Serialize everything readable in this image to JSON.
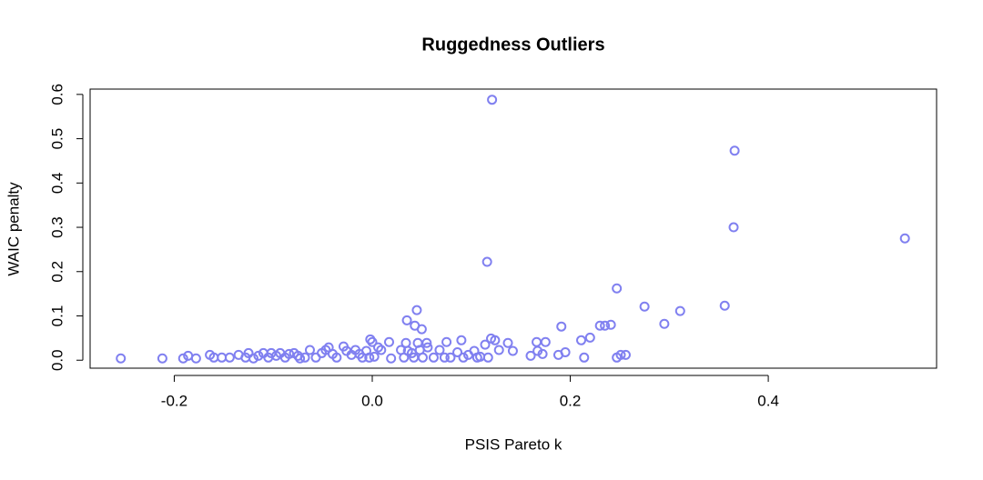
{
  "chart_data": {
    "type": "scatter",
    "title": "Ruggedness Outliers",
    "x_label": "PSIS Pareto k",
    "y_label": "WAIC penalty",
    "color": "#8080f0",
    "xlim": [
      -0.285,
      0.57
    ],
    "ylim": [
      -0.018,
      0.612
    ],
    "xticks": [
      {
        "value": -0.2,
        "label": "-0.2"
      },
      {
        "value": 0,
        "label": "0.0"
      },
      {
        "value": 0.2,
        "label": "0.2"
      },
      {
        "value": 0.4,
        "label": "0.4"
      }
    ],
    "yticks": [
      {
        "value": 0,
        "label": "0.0"
      },
      0.1,
      0.2,
      0.3,
      0.4,
      0.5,
      0.6
    ],
    "x": [
      0.121,
      0.366,
      0.365,
      0.538,
      0.116,
      0.247,
      0.275,
      0.356,
      0.311,
      0.295,
      0.045,
      0.035,
      0.043,
      0.05,
      0.191,
      0.23,
      0.235,
      0.241,
      0.22,
      0.211,
      0.12,
      0.124,
      0.175,
      0.166,
      0.137,
      0.09,
      0.075,
      0.114,
      -0.002,
      0,
      0.017,
      0.055,
      0.046,
      0.034,
      -0.254,
      -0.212,
      -0.191,
      -0.186,
      -0.178,
      -0.164,
      -0.16,
      -0.152,
      -0.144,
      -0.135,
      -0.128,
      -0.125,
      -0.12,
      -0.115,
      -0.11,
      -0.105,
      -0.102,
      -0.097,
      -0.093,
      -0.088,
      -0.084,
      -0.079,
      -0.075,
      -0.073,
      -0.068,
      -0.063,
      -0.057,
      -0.051,
      -0.047,
      -0.044,
      -0.04,
      -0.036,
      -0.029,
      -0.026,
      -0.021,
      -0.017,
      -0.013,
      -0.01,
      -0.006,
      -0.003,
      0.002,
      0.006,
      0.009,
      0.019,
      0.029,
      0.032,
      0.036,
      0.04,
      0.042,
      0.048,
      0.051,
      0.056,
      0.062,
      0.068,
      0.073,
      0.079,
      0.086,
      0.092,
      0.097,
      0.103,
      0.106,
      0.109,
      0.117,
      0.128,
      0.142,
      0.16,
      0.167,
      0.172,
      0.188,
      0.195,
      0.214,
      0.247,
      0.251,
      0.256
    ],
    "values": [
      0.588,
      0.473,
      0.3,
      0.275,
      0.222,
      0.162,
      0.121,
      0.123,
      0.111,
      0.082,
      0.113,
      0.09,
      0.078,
      0.07,
      0.076,
      0.078,
      0.078,
      0.08,
      0.051,
      0.045,
      0.049,
      0.045,
      0.041,
      0.041,
      0.039,
      0.045,
      0.041,
      0.035,
      0.047,
      0.041,
      0.041,
      0.039,
      0.039,
      0.039,
      0.004,
      0.004,
      0.004,
      0.01,
      0.004,
      0.012,
      0.006,
      0.006,
      0.006,
      0.012,
      0.006,
      0.016,
      0.004,
      0.01,
      0.016,
      0.006,
      0.016,
      0.01,
      0.016,
      0.006,
      0.014,
      0.016,
      0.01,
      0.004,
      0.006,
      0.023,
      0.006,
      0.016,
      0.023,
      0.029,
      0.014,
      0.006,
      0.031,
      0.021,
      0.012,
      0.023,
      0.014,
      0.006,
      0.021,
      0.006,
      0.008,
      0.029,
      0.023,
      0.004,
      0.023,
      0.006,
      0.021,
      0.016,
      0.006,
      0.023,
      0.006,
      0.029,
      0.006,
      0.023,
      0.006,
      0.006,
      0.018,
      0.006,
      0.012,
      0.021,
      0.006,
      0.008,
      0.006,
      0.023,
      0.021,
      0.01,
      0.021,
      0.014,
      0.012,
      0.018,
      0.006,
      0.006,
      0.012,
      0.012
    ]
  }
}
